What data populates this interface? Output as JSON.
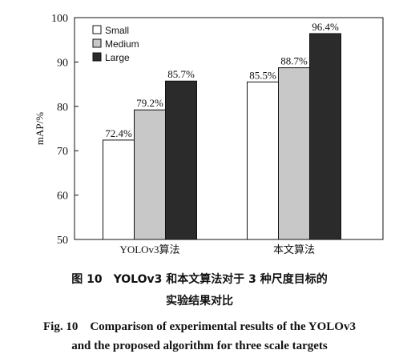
{
  "chart_data": {
    "type": "bar",
    "ylabel": "mAP/%",
    "xlabel": "",
    "ylim": [
      50,
      100
    ],
    "yticks": [
      50,
      60,
      70,
      80,
      90,
      100
    ],
    "categories": [
      "YOLOv3算法",
      "本文算法"
    ],
    "series": [
      {
        "name": "Small",
        "values": [
          72.4,
          85.5
        ],
        "labels": [
          "72.4%",
          "85.5%"
        ],
        "color": "#ffffff"
      },
      {
        "name": "Medium",
        "values": [
          79.2,
          88.7
        ],
        "labels": [
          "79.2%",
          "88.7%"
        ],
        "color": "#c8c8c8"
      },
      {
        "name": "Large",
        "values": [
          85.7,
          96.4
        ],
        "labels": [
          "85.7%",
          "96.4%"
        ],
        "color": "#2b2b2b"
      }
    ],
    "legend": "top-left",
    "grid": false
  },
  "caption": {
    "cn_line1": "图 10　YOLOv3 和本文算法对于 3 种尺度目标的",
    "cn_line2": "实验结果对比",
    "en_line1": "Fig. 10　Comparison of experimental results of the YOLOv3",
    "en_line2": "and the proposed algorithm for three scale targets"
  }
}
